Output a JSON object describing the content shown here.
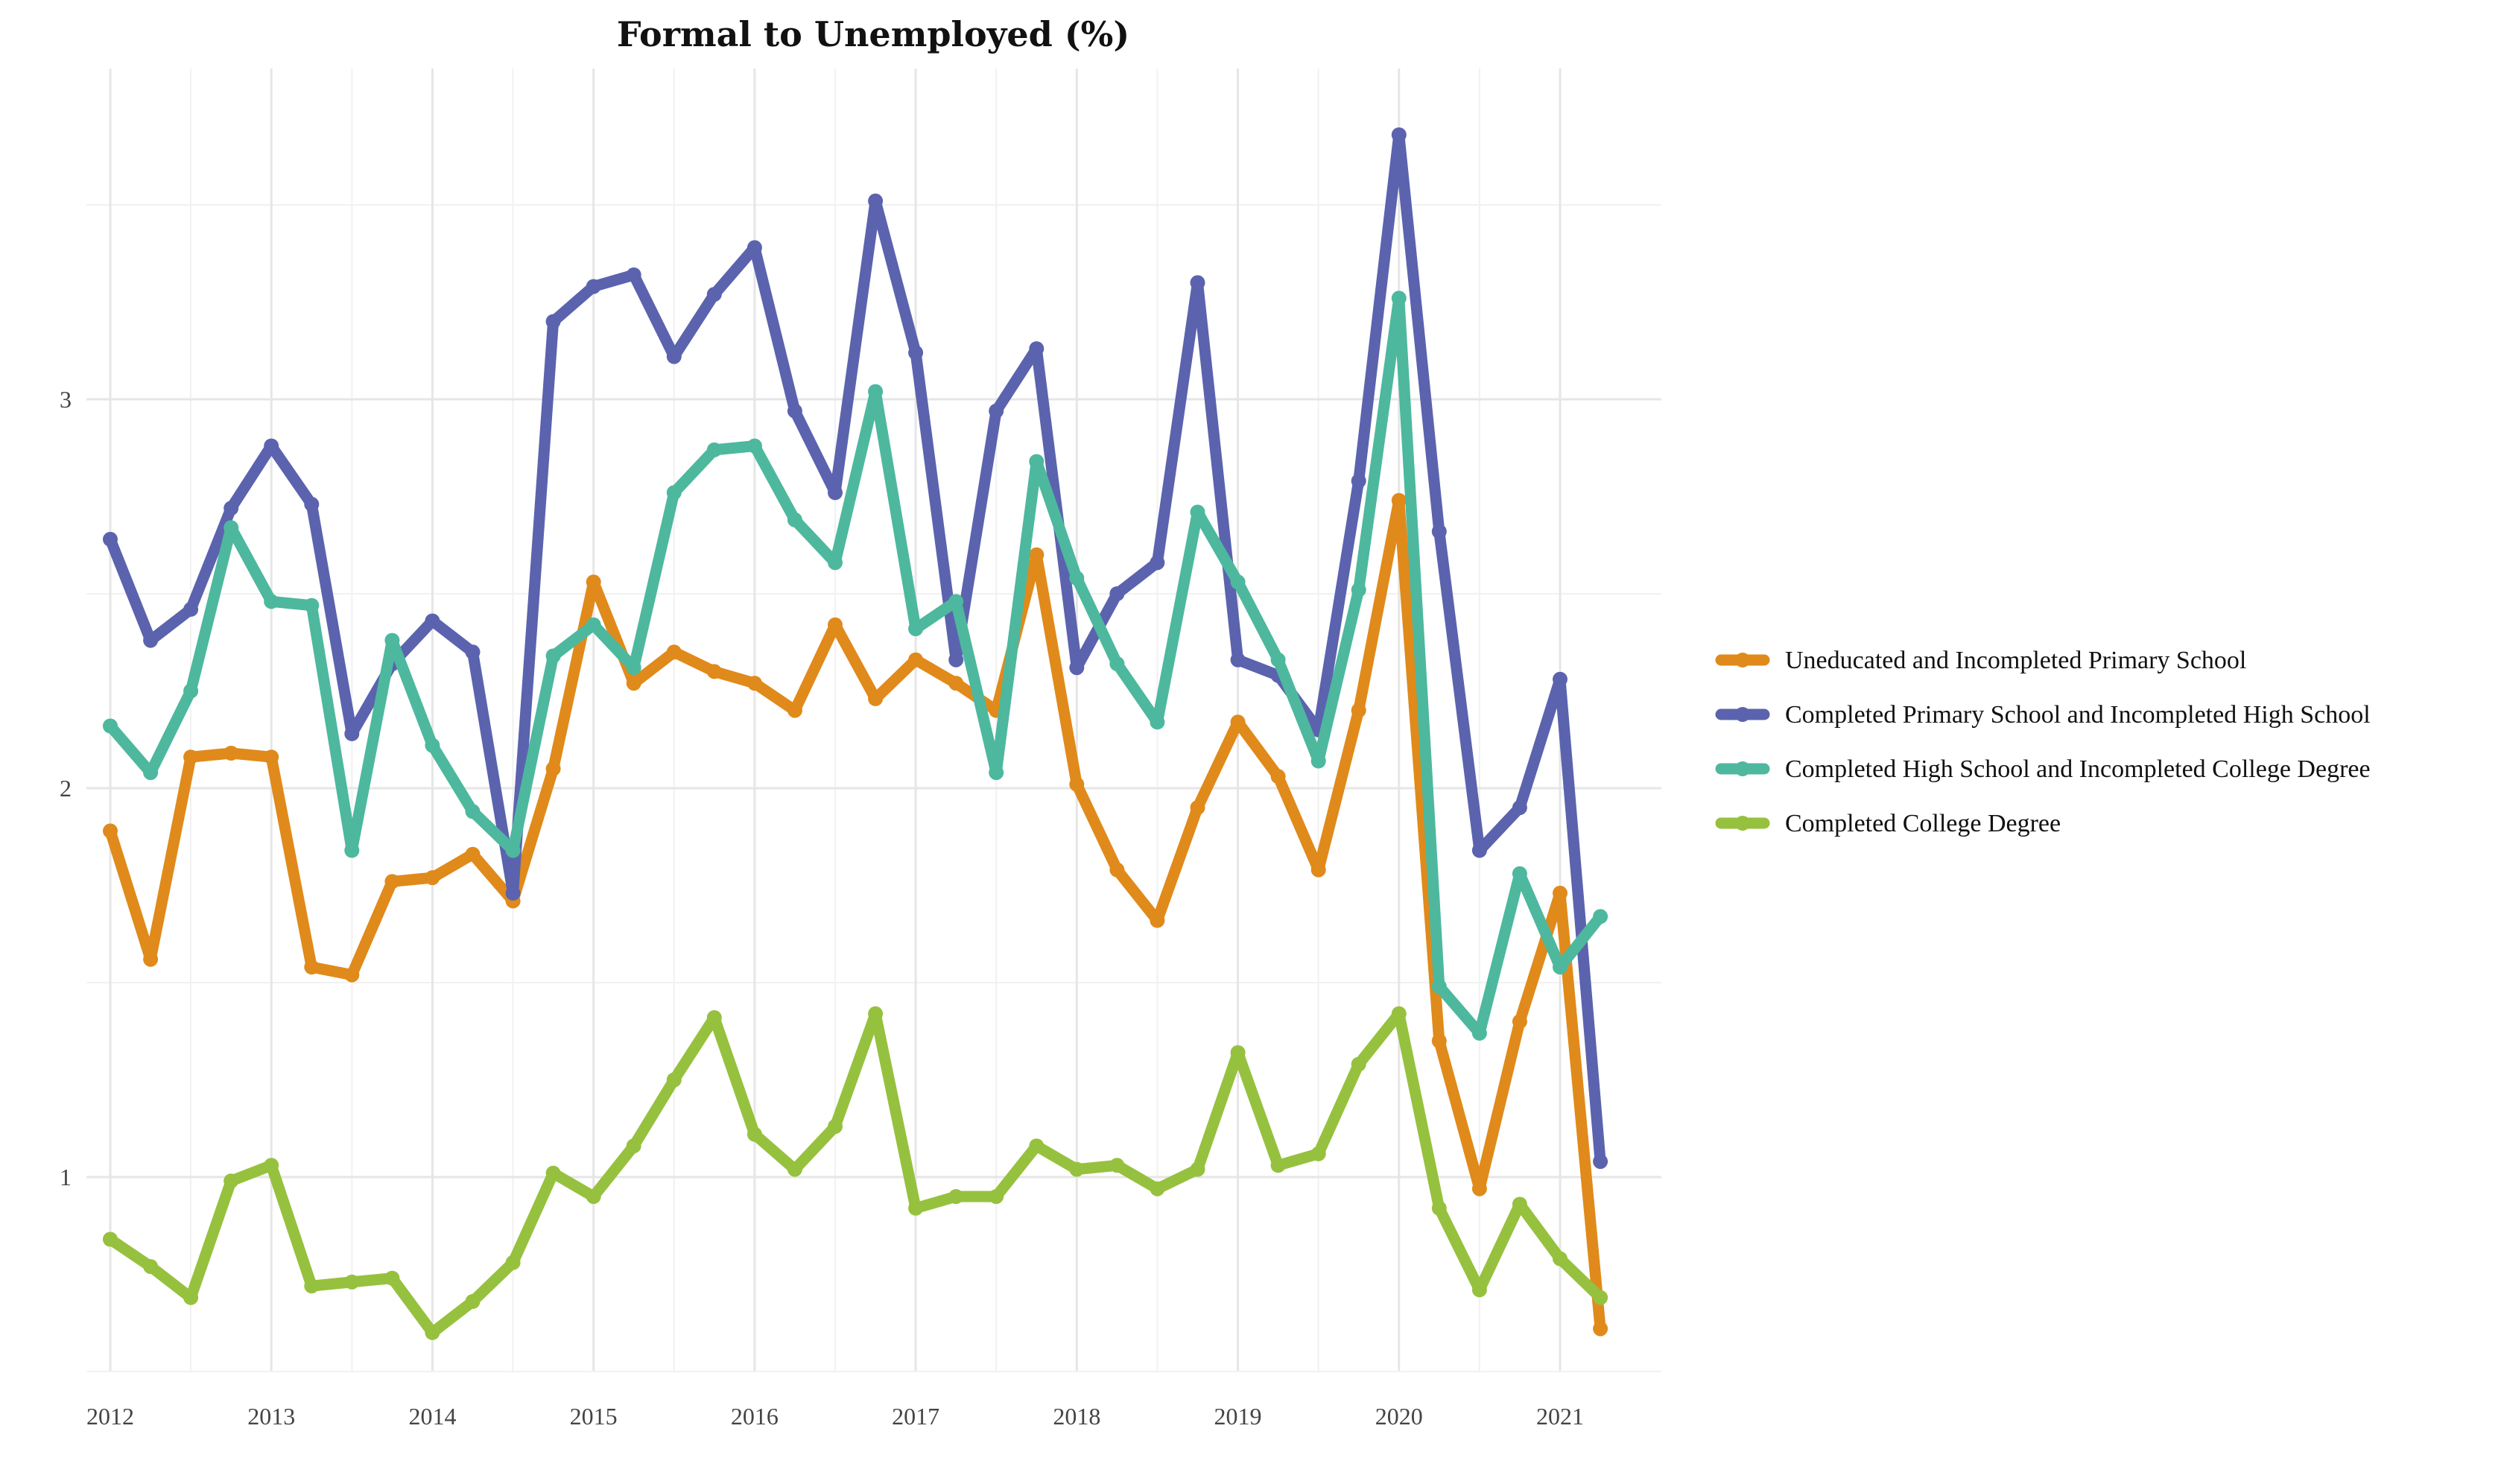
{
  "chart_data": {
    "type": "line",
    "title": "Formal to Unemployed (%)",
    "xlabel": "",
    "ylabel": "",
    "xlim": [
      2011.9,
      2021.55
    ],
    "ylim": [
      0.5,
      3.85
    ],
    "x_ticks": [
      2012,
      2013,
      2014,
      2015,
      2016,
      2017,
      2018,
      2019,
      2020,
      2021
    ],
    "y_ticks": [
      1,
      2,
      3
    ],
    "grid": true,
    "legend_position": "right",
    "x": [
      2012.0,
      2012.25,
      2012.5,
      2012.75,
      2013.0,
      2013.25,
      2013.5,
      2013.75,
      2014.0,
      2014.25,
      2014.5,
      2014.75,
      2015.0,
      2015.25,
      2015.5,
      2015.75,
      2016.0,
      2016.25,
      2016.5,
      2016.75,
      2017.0,
      2017.25,
      2017.5,
      2017.75,
      2018.0,
      2018.25,
      2018.5,
      2018.75,
      2019.0,
      2019.25,
      2019.5,
      2019.75,
      2020.0,
      2020.25,
      2020.5,
      2020.75,
      2021.0,
      2021.25
    ],
    "series": [
      {
        "name": "Uneducated and Incompleted Primary School",
        "color": "#E08A1B",
        "values": [
          1.89,
          1.56,
          2.08,
          2.09,
          2.08,
          1.54,
          1.52,
          1.76,
          1.77,
          1.83,
          1.71,
          2.05,
          2.53,
          2.27,
          2.35,
          2.3,
          2.27,
          2.2,
          2.42,
          2.23,
          2.33,
          2.27,
          2.2,
          2.6,
          2.01,
          1.79,
          1.66,
          1.95,
          2.17,
          2.03,
          1.79,
          2.2,
          2.74,
          1.35,
          0.97,
          1.4,
          1.73,
          0.61
        ]
      },
      {
        "name": "Completed Primary School and Incompleted High School",
        "color": "#5B63AE",
        "values": [
          2.64,
          2.38,
          2.46,
          2.72,
          2.88,
          2.73,
          2.14,
          2.32,
          2.43,
          2.35,
          1.73,
          3.2,
          3.29,
          3.32,
          3.11,
          3.27,
          3.39,
          2.97,
          2.76,
          3.51,
          3.12,
          2.33,
          2.97,
          3.13,
          2.31,
          2.5,
          2.58,
          3.3,
          2.33,
          2.29,
          2.15,
          2.79,
          3.68,
          2.66,
          1.84,
          1.95,
          2.28,
          1.04
        ]
      },
      {
        "name": "Completed High School and Incompleted College Degree",
        "color": "#4DB89E",
        "values": [
          2.16,
          2.04,
          2.25,
          2.67,
          2.48,
          2.47,
          1.84,
          2.38,
          2.11,
          1.94,
          1.84,
          2.34,
          2.42,
          2.31,
          2.76,
          2.87,
          2.88,
          2.69,
          2.58,
          3.02,
          2.41,
          2.48,
          2.04,
          2.84,
          2.54,
          2.32,
          2.17,
          2.71,
          2.53,
          2.33,
          2.07,
          2.51,
          3.26,
          1.49,
          1.37,
          1.78,
          1.54,
          1.67
        ]
      },
      {
        "name": "Completed College Degree",
        "color": "#96C13E",
        "values": [
          0.84,
          0.77,
          0.69,
          0.99,
          1.03,
          0.72,
          0.73,
          0.74,
          0.6,
          0.68,
          0.78,
          1.01,
          0.95,
          1.08,
          1.25,
          1.41,
          1.11,
          1.02,
          1.13,
          1.42,
          0.92,
          0.95,
          0.95,
          1.08,
          1.02,
          1.03,
          0.97,
          1.02,
          1.32,
          1.03,
          1.06,
          1.29,
          1.42,
          0.92,
          0.71,
          0.93,
          0.79,
          0.69
        ]
      }
    ]
  }
}
